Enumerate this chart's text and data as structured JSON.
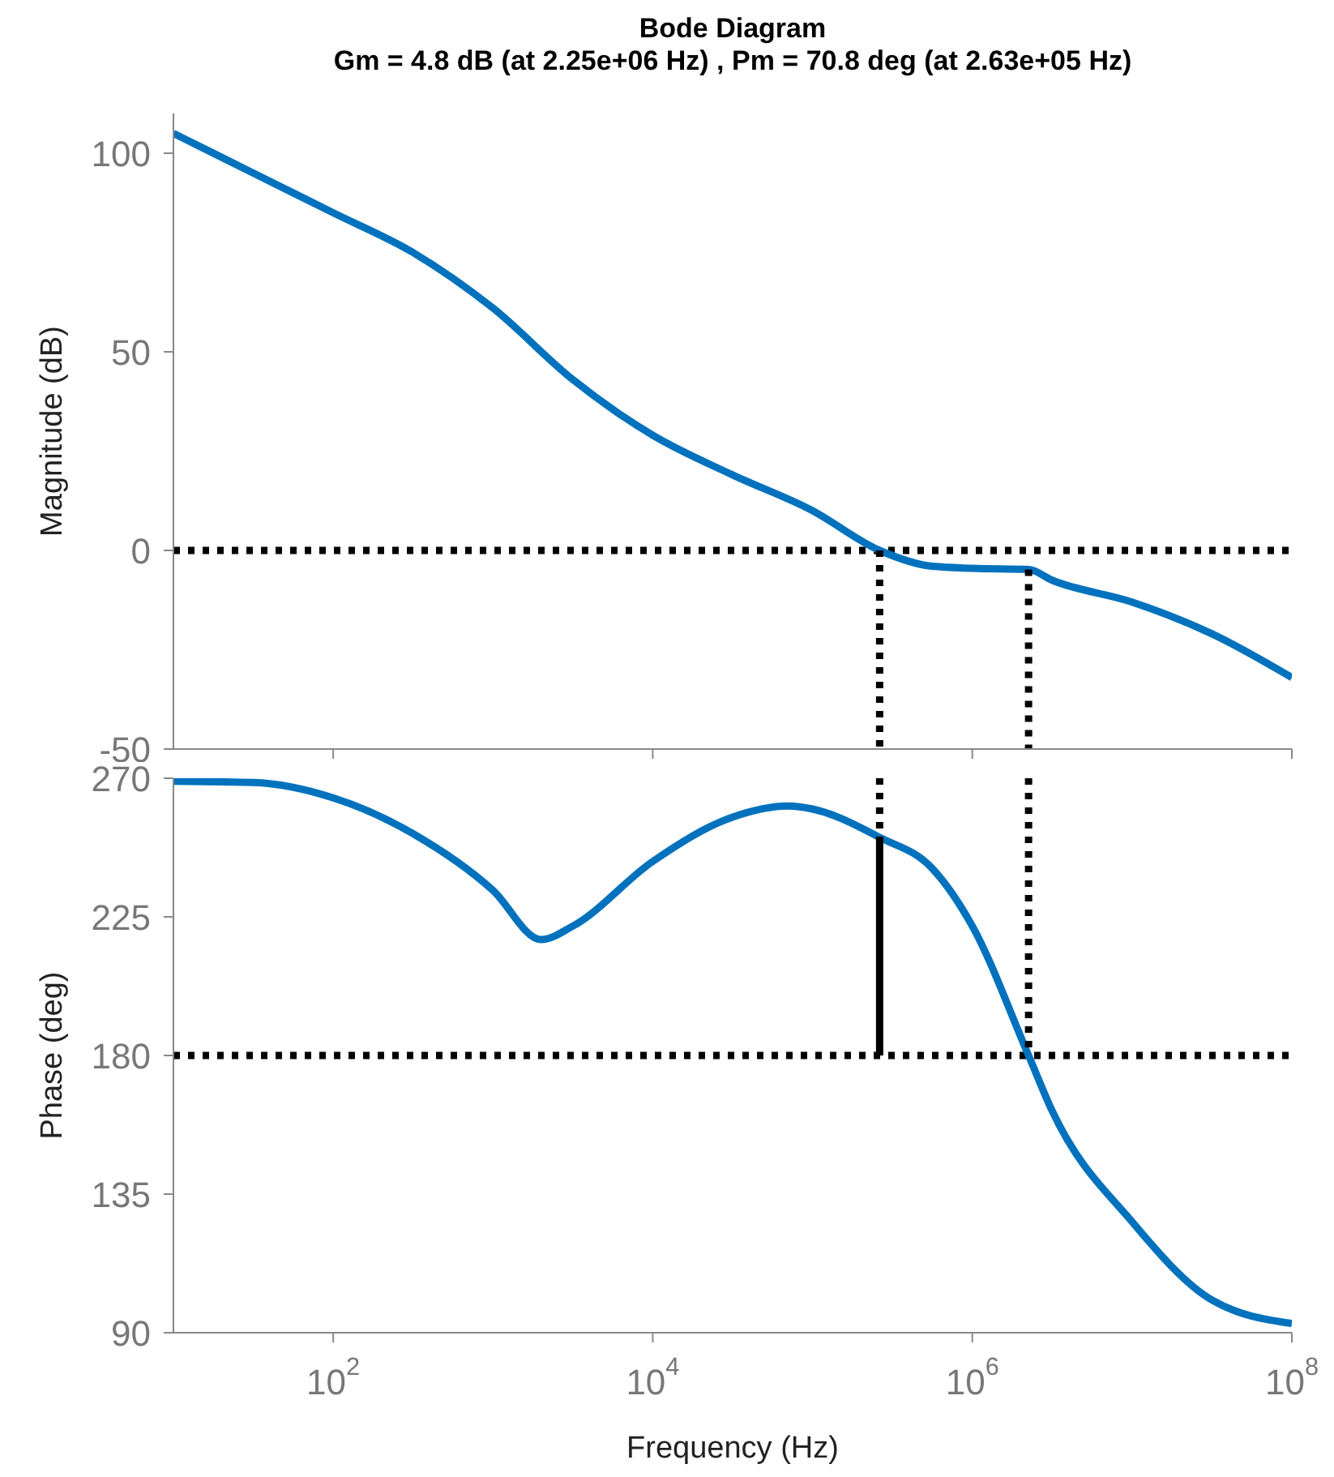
{
  "chart_data": [
    {
      "type": "line",
      "title": "Bode Diagram",
      "subtitle": "Gm = 4.8 dB (at 2.25e+06 Hz) ,  Pm = 70.8 deg (at 2.63e+05 Hz)",
      "ylabel": "Magnitude (dB)",
      "log": "x",
      "tick_labels": "y",
      "xlim": [
        10,
        100000000
      ],
      "xticks": [
        {
          "value": 100,
          "label": null
        },
        {
          "value": 10000,
          "label": null
        },
        {
          "value": 1000000,
          "label": null
        },
        {
          "value": 100000000,
          "label": null
        }
      ],
      "ylim": [
        -50,
        110
      ],
      "yticks": [
        -50,
        0,
        50,
        100
      ],
      "ref_lines": [
        {
          "axis": "y",
          "value": 0,
          "color": "#000000",
          "line_style": "dotted"
        }
      ],
      "series": [
        {
          "type": "line",
          "color": "#0072bd",
          "line_style": "solid",
          "x": [
            10,
            31.6,
            100,
            316,
            1000,
            3162,
            10000,
            31623,
            100000,
            263000,
            562000,
            1000000,
            2250000,
            3162000,
            10000000,
            31623000,
            100000000
          ],
          "values": [
            105,
            95,
            85,
            75,
            61,
            43,
            29,
            19,
            10,
            0,
            -4,
            -4.5,
            -4.8,
            -7.5,
            -13,
            -21,
            -32
          ]
        },
        {
          "type": "line",
          "color": "#000000",
          "line_style": "dotted",
          "x": [
            263000,
            263000
          ],
          "values": [
            0,
            -50
          ]
        },
        {
          "type": "line",
          "color": "#000000",
          "line_style": "dotted",
          "x": [
            2250000,
            2250000
          ],
          "values": [
            -4.8,
            -50
          ]
        }
      ]
    },
    {
      "type": "line",
      "xlabel": "Frequency  (Hz)",
      "ylabel": "Phase (deg)",
      "log": "x",
      "xlim": [
        10,
        100000000
      ],
      "xticks": [
        {
          "value": 100,
          "label": "10$^{2}$"
        },
        {
          "value": 10000,
          "label": "10$^{4}$"
        },
        {
          "value": 1000000,
          "label": "10$^{6}$"
        },
        {
          "value": 100000000,
          "label": "10$^{8}$"
        }
      ],
      "ylim": [
        90,
        270
      ],
      "yticks": [
        90,
        135,
        180,
        225,
        270
      ],
      "ref_lines": [
        {
          "axis": "y",
          "value": 180,
          "color": "#000000",
          "line_style": "dotted"
        }
      ],
      "series": [
        {
          "type": "line",
          "color": "#0072bd",
          "line_style": "solid",
          "x": [
            10,
            31.6,
            100,
            316,
            1000,
            2000,
            3162,
            10000,
            31623,
            70800,
            100000,
            263000,
            562000,
            1000000,
            2250000,
            3162000,
            10000000,
            31623000,
            100000000
          ],
          "values": [
            269,
            268.6,
            263.6,
            252,
            233.6,
            217.6,
            222,
            243,
            257.4,
            261,
            260,
            250.8,
            240.7,
            222,
            180,
            162,
            126,
            100.6,
            93
          ]
        },
        {
          "type": "line",
          "color": "#000000",
          "line_style": "dotted",
          "x": [
            263000,
            263000
          ],
          "values": [
            270,
            250.8
          ]
        },
        {
          "type": "line",
          "color": "#000000",
          "line_style": "solid",
          "x": [
            263000,
            263000
          ],
          "values": [
            250.8,
            180
          ]
        },
        {
          "type": "line",
          "color": "#000000",
          "line_style": "dotted",
          "x": [
            2250000,
            2250000
          ],
          "values": [
            270,
            180
          ]
        }
      ]
    }
  ]
}
